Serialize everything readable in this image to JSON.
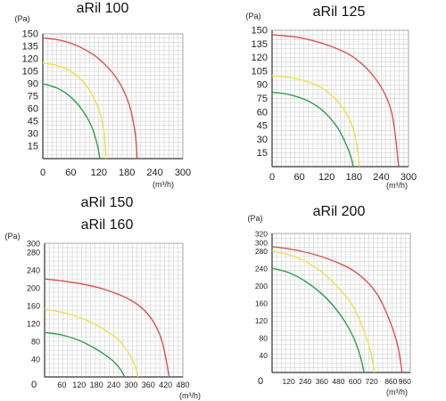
{
  "chart_data": [
    {
      "type": "line",
      "title": "aRil 100",
      "subtitle": "",
      "ylabel": "(Pa)",
      "xlabel": "(m³/h)",
      "xlim": [
        0,
        300
      ],
      "ylim": [
        0,
        150
      ],
      "x_ticks": [
        "0",
        "60",
        "120",
        "180",
        "240",
        "300"
      ],
      "y_ticks": [
        "15",
        "30",
        "45",
        "60",
        "75",
        "90",
        "105",
        "120",
        "135",
        "150"
      ],
      "grid": true,
      "colors": {
        "red": "#d9534f",
        "yellow": "#ece04a",
        "green": "#2e9e4f",
        "grid": "#c8c8c8",
        "axis": "#333333"
      },
      "series": [
        {
          "color": "red",
          "x": [
            0,
            40,
            80,
            120,
            160,
            185,
            198,
            202
          ],
          "y": [
            145,
            142,
            134,
            120,
            95,
            65,
            30,
            0
          ]
        },
        {
          "color": "yellow",
          "x": [
            0,
            30,
            60,
            90,
            110,
            125,
            133,
            135
          ],
          "y": [
            115,
            112,
            105,
            90,
            72,
            50,
            22,
            0
          ]
        },
        {
          "color": "green",
          "x": [
            0,
            30,
            60,
            85,
            105,
            117,
            122
          ],
          "y": [
            90,
            85,
            74,
            58,
            38,
            16,
            0
          ]
        }
      ]
    },
    {
      "type": "line",
      "title": "aRil 125",
      "subtitle": "",
      "ylabel": "(Pa)",
      "xlabel": "(m³/h)",
      "xlim": [
        0,
        300
      ],
      "ylim": [
        0,
        150
      ],
      "x_ticks": [
        "0",
        "60",
        "120",
        "180",
        "240",
        "300"
      ],
      "y_ticks": [
        "15",
        "30",
        "45",
        "60",
        "75",
        "90",
        "105",
        "120",
        "135",
        "150"
      ],
      "grid": true,
      "colors": {
        "red": "#d9534f",
        "yellow": "#ece04a",
        "green": "#2e9e4f",
        "grid": "#c8c8c8",
        "axis": "#333333"
      },
      "series": [
        {
          "color": "red",
          "x": [
            0,
            60,
            120,
            180,
            230,
            260,
            272,
            278
          ],
          "y": [
            145,
            142,
            134,
            120,
            95,
            65,
            30,
            0
          ]
        },
        {
          "color": "yellow",
          "x": [
            0,
            40,
            80,
            120,
            155,
            178,
            188,
            192
          ],
          "y": [
            100,
            98,
            93,
            83,
            65,
            42,
            18,
            0
          ]
        },
        {
          "color": "green",
          "x": [
            0,
            40,
            80,
            115,
            145,
            165,
            175,
            178
          ],
          "y": [
            82,
            79,
            72,
            60,
            42,
            22,
            8,
            0
          ]
        }
      ]
    },
    {
      "type": "line",
      "title": "aRil 150",
      "subtitle": "aRil 160",
      "ylabel": "(Pa)",
      "xlabel": "(m³/h)",
      "xlim": [
        0,
        480
      ],
      "ylim": [
        0,
        300
      ],
      "x_ticks": [
        "60",
        "120",
        "180",
        "240",
        "300",
        "360",
        "420",
        "480"
      ],
      "y_ticks": [
        "40",
        "80",
        "120",
        "160",
        "200",
        "240",
        "280",
        "300"
      ],
      "zero_label": "0",
      "grid": true,
      "colors": {
        "red": "#d9534f",
        "yellow": "#ece04a",
        "green": "#2e9e4f",
        "grid": "#c8c8c8",
        "axis": "#333333"
      },
      "series": [
        {
          "color": "red",
          "x": [
            0,
            100,
            200,
            300,
            360,
            400,
            420,
            432
          ],
          "y": [
            220,
            212,
            198,
            172,
            140,
            95,
            45,
            0
          ]
        },
        {
          "color": "yellow",
          "x": [
            0,
            80,
            160,
            240,
            280,
            310,
            325
          ],
          "y": [
            152,
            142,
            123,
            92,
            65,
            32,
            0
          ]
        },
        {
          "color": "green",
          "x": [
            0,
            60,
            120,
            180,
            230,
            260,
            278
          ],
          "y": [
            100,
            94,
            82,
            62,
            40,
            20,
            0
          ]
        }
      ]
    },
    {
      "type": "line",
      "title": "aRil 200",
      "subtitle": "",
      "ylabel": "(Pa)",
      "xlabel": "(m³/h)",
      "xlim": [
        0,
        1000
      ],
      "ylim": [
        0,
        320
      ],
      "x_ticks": [
        "120",
        "240",
        "360",
        "480",
        "600",
        "720",
        "860",
        "960"
      ],
      "y_ticks": [
        "40",
        "80",
        "120",
        "160",
        "200",
        "240",
        "280",
        "300",
        "320"
      ],
      "zero_label": "0",
      "grid": true,
      "colors": {
        "red": "#d9534f",
        "yellow": "#ece04a",
        "green": "#2e9e4f",
        "grid": "#c8c8c8",
        "axis": "#333333"
      },
      "series": [
        {
          "color": "red",
          "x": [
            0,
            200,
            400,
            600,
            750,
            850,
            910,
            940
          ],
          "y": [
            290,
            280,
            262,
            232,
            185,
            120,
            60,
            0
          ]
        },
        {
          "color": "yellow",
          "x": [
            0,
            150,
            300,
            450,
            580,
            660,
            715,
            740
          ],
          "y": [
            280,
            268,
            245,
            205,
            155,
            100,
            45,
            0
          ]
        },
        {
          "color": "green",
          "x": [
            0,
            120,
            240,
            380,
            500,
            590,
            640,
            665
          ],
          "y": [
            240,
            230,
            210,
            175,
            130,
            80,
            35,
            0
          ]
        }
      ]
    }
  ]
}
